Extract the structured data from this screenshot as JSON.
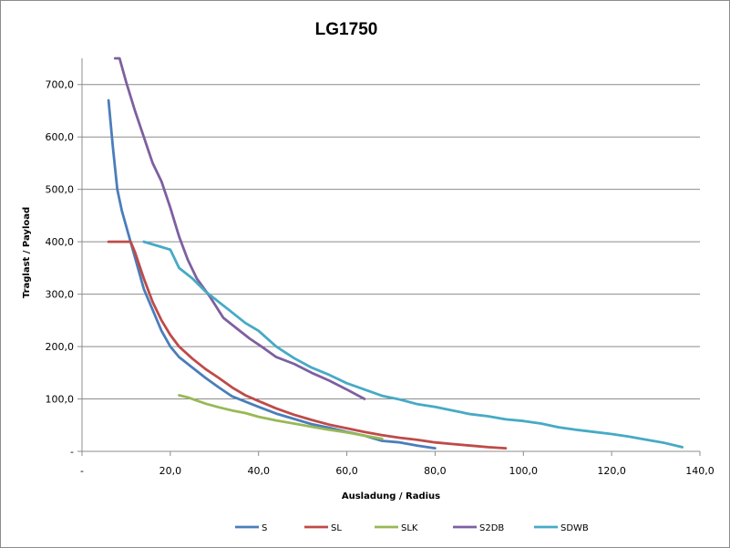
{
  "chart_data": {
    "type": "line",
    "title": "LG1750",
    "xlabel": "Ausladung / Radius",
    "ylabel": "Traglast / Payload",
    "xlim": [
      0,
      140
    ],
    "ylim": [
      0,
      750
    ],
    "x_ticks": [
      "-",
      "20,0",
      "40,0",
      "60,0",
      "80,0",
      "100,0",
      "120,0",
      "140,0"
    ],
    "y_ticks": [
      "-",
      "100,0",
      "200,0",
      "300,0",
      "400,0",
      "500,0",
      "600,0",
      "700,0"
    ],
    "grid": "horizontal",
    "legend_position": "bottom",
    "series": [
      {
        "name": "S",
        "color": "#4a7ebb",
        "points": [
          [
            6,
            670
          ],
          [
            7,
            580
          ],
          [
            8,
            500
          ],
          [
            9,
            460
          ],
          [
            10,
            430
          ],
          [
            12,
            370
          ],
          [
            14,
            310
          ],
          [
            16,
            270
          ],
          [
            18,
            230
          ],
          [
            20,
            200
          ],
          [
            22,
            180
          ],
          [
            25,
            160
          ],
          [
            28,
            140
          ],
          [
            31,
            122
          ],
          [
            34,
            105
          ],
          [
            37,
            95
          ],
          [
            40,
            85
          ],
          [
            44,
            72
          ],
          [
            48,
            62
          ],
          [
            52,
            52
          ],
          [
            56,
            45
          ],
          [
            60,
            37
          ],
          [
            64,
            30
          ],
          [
            68,
            20
          ],
          [
            72,
            17
          ],
          [
            76,
            11
          ],
          [
            80,
            6
          ]
        ]
      },
      {
        "name": "SL",
        "color": "#be4b48",
        "points": [
          [
            6,
            400
          ],
          [
            8,
            400
          ],
          [
            10,
            400
          ],
          [
            11,
            400
          ],
          [
            12,
            380
          ],
          [
            14,
            330
          ],
          [
            16,
            285
          ],
          [
            18,
            250
          ],
          [
            20,
            222
          ],
          [
            22,
            200
          ],
          [
            25,
            177
          ],
          [
            28,
            157
          ],
          [
            31,
            140
          ],
          [
            34,
            122
          ],
          [
            37,
            107
          ],
          [
            40,
            96
          ],
          [
            44,
            82
          ],
          [
            48,
            70
          ],
          [
            52,
            60
          ],
          [
            56,
            51
          ],
          [
            60,
            44
          ],
          [
            64,
            37
          ],
          [
            68,
            31
          ],
          [
            72,
            26
          ],
          [
            76,
            22
          ],
          [
            80,
            17
          ],
          [
            84,
            14
          ],
          [
            88,
            11
          ],
          [
            92,
            8
          ],
          [
            96,
            6
          ]
        ]
      },
      {
        "name": "SLK",
        "color": "#98b954",
        "points": [
          [
            22,
            107
          ],
          [
            24,
            103
          ],
          [
            26,
            97
          ],
          [
            28,
            91
          ],
          [
            31,
            84
          ],
          [
            34,
            78
          ],
          [
            37,
            73
          ],
          [
            40,
            66
          ],
          [
            44,
            59
          ],
          [
            48,
            53
          ],
          [
            52,
            47
          ],
          [
            56,
            41
          ],
          [
            60,
            36
          ],
          [
            64,
            30
          ],
          [
            68,
            24
          ]
        ]
      },
      {
        "name": "S2DB",
        "color": "#7d60a0",
        "points": [
          [
            7.5,
            750
          ],
          [
            8.5,
            750
          ],
          [
            9,
            735
          ],
          [
            10,
            705
          ],
          [
            12,
            650
          ],
          [
            14,
            600
          ],
          [
            16,
            550
          ],
          [
            18,
            515
          ],
          [
            20,
            465
          ],
          [
            22,
            410
          ],
          [
            24,
            365
          ],
          [
            26,
            330
          ],
          [
            29,
            295
          ],
          [
            32,
            255
          ],
          [
            35,
            235
          ],
          [
            38,
            215
          ],
          [
            41,
            198
          ],
          [
            44,
            180
          ],
          [
            48,
            167
          ],
          [
            52,
            150
          ],
          [
            56,
            135
          ],
          [
            60,
            118
          ],
          [
            64,
            100
          ]
        ]
      },
      {
        "name": "SDWB",
        "color": "#46aac5",
        "points": [
          [
            14,
            400
          ],
          [
            16,
            395
          ],
          [
            18,
            390
          ],
          [
            20,
            385
          ],
          [
            22,
            350
          ],
          [
            25,
            330
          ],
          [
            28,
            305
          ],
          [
            31,
            285
          ],
          [
            34,
            265
          ],
          [
            37,
            245
          ],
          [
            40,
            230
          ],
          [
            44,
            200
          ],
          [
            48,
            178
          ],
          [
            52,
            160
          ],
          [
            56,
            146
          ],
          [
            60,
            130
          ],
          [
            64,
            118
          ],
          [
            68,
            106
          ],
          [
            72,
            99
          ],
          [
            76,
            90
          ],
          [
            80,
            85
          ],
          [
            84,
            78
          ],
          [
            88,
            71
          ],
          [
            92,
            67
          ],
          [
            96,
            61
          ],
          [
            100,
            58
          ],
          [
            104,
            53
          ],
          [
            108,
            46
          ],
          [
            112,
            41
          ],
          [
            116,
            37
          ],
          [
            120,
            33
          ],
          [
            124,
            28
          ],
          [
            128,
            22
          ],
          [
            132,
            16
          ],
          [
            136,
            8
          ]
        ]
      }
    ]
  }
}
